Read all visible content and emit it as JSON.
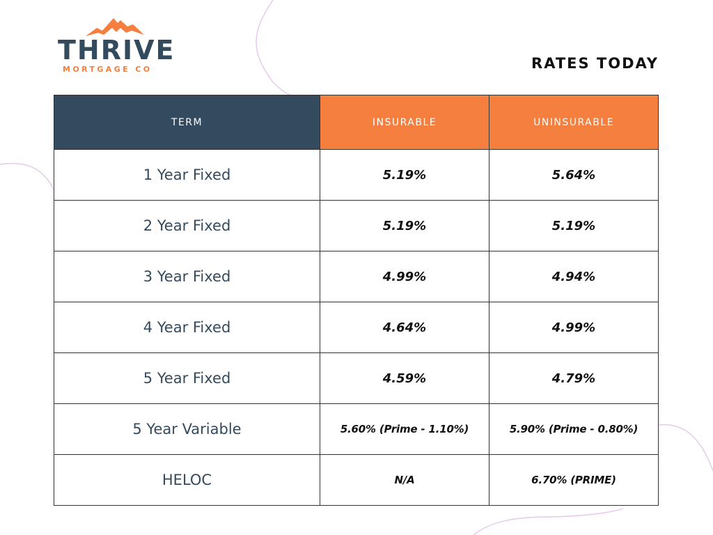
{
  "logo": {
    "name": "THRIVE",
    "tagline": "MORTGAGE CO",
    "colors": {
      "primary": "#344a5d",
      "accent": "#f47f3f"
    }
  },
  "title": "RATES TODAY",
  "table": {
    "headers": {
      "term": "TERM",
      "insurable": "INSURABLE",
      "uninsurable": "UNINSURABLE"
    },
    "rows": [
      {
        "term": "1 Year Fixed",
        "insurable": "5.19%",
        "uninsurable": "5.64%"
      },
      {
        "term": "2 Year Fixed",
        "insurable": "5.19%",
        "uninsurable": "5.19%"
      },
      {
        "term": "3 Year Fixed",
        "insurable": "4.99%",
        "uninsurable": "4.94%"
      },
      {
        "term": "4 Year Fixed",
        "insurable": "4.64%",
        "uninsurable": "4.99%"
      },
      {
        "term": "5 Year Fixed",
        "insurable": "4.59%",
        "uninsurable": "4.79%"
      },
      {
        "term": "5 Year Variable",
        "insurable": "5.60% (Prime - 1.10%)",
        "uninsurable": "5.90% (Prime - 0.80%)"
      },
      {
        "term": "HELOC",
        "insurable": "N/A",
        "uninsurable": "6.70% (PRIME)"
      }
    ]
  },
  "colors": {
    "header_term": "#334a5f",
    "header_rates": "#f47f3f",
    "decor_lines": "#e6c6ec"
  }
}
